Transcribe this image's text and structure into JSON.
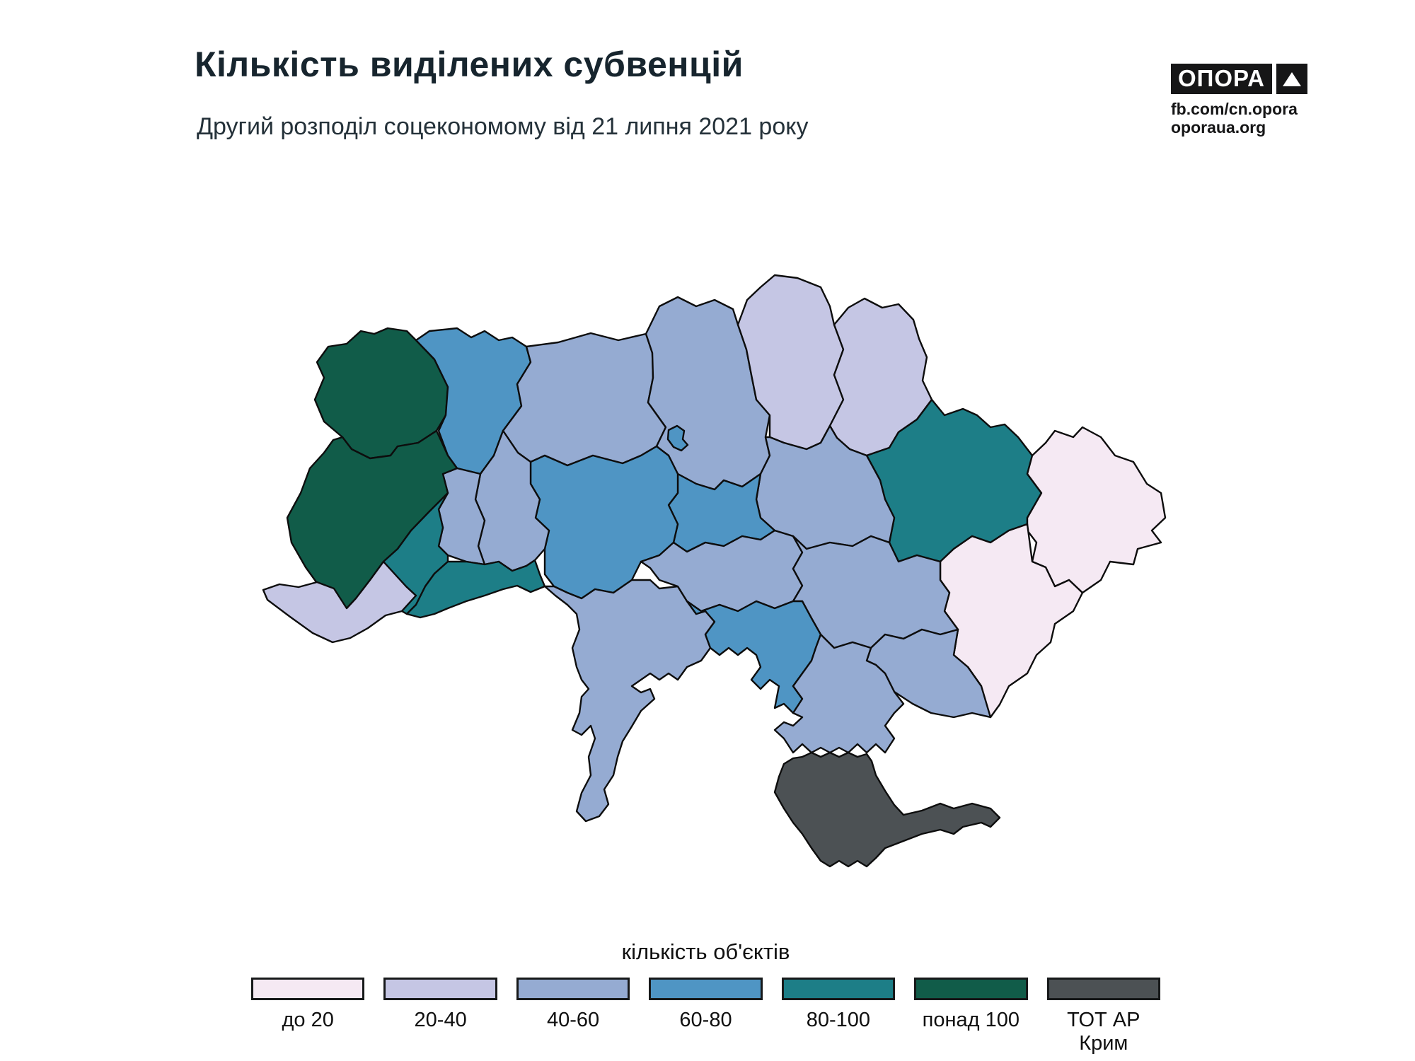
{
  "header": {
    "title": "Кількість виділених субвенцій",
    "subtitle": "Другий розподіл соцекономому від 21 липня 2021 року"
  },
  "logo": {
    "brand": "ОПОРА",
    "line1": "fb.com/cn.opora",
    "line2": "oporaua.org"
  },
  "legend": {
    "title": "кількість об'єктів",
    "items": [
      {
        "id": "under-20",
        "label": "до 20",
        "color": "#f5e9f3"
      },
      {
        "id": "20-40",
        "label": "20-40",
        "color": "#c5c6e4"
      },
      {
        "id": "40-60",
        "label": "40-60",
        "color": "#95abd2"
      },
      {
        "id": "60-80",
        "label": "60-80",
        "color": "#4f95c4"
      },
      {
        "id": "80-100",
        "label": "80-100",
        "color": "#1d7e87"
      },
      {
        "id": "over-100",
        "label": "понад 100",
        "color": "#115c49"
      },
      {
        "id": "tot-crimea",
        "label": "ТОТ АР Крим",
        "color": "#4c5154"
      }
    ]
  },
  "map": {
    "regions": [
      {
        "id": "volyn",
        "name": "Волинська",
        "category": "over-100"
      },
      {
        "id": "rivne",
        "name": "Рівненська",
        "category": "60-80"
      },
      {
        "id": "zhytomyr",
        "name": "Житомирська",
        "category": "40-60"
      },
      {
        "id": "kyiv-oblast",
        "name": "Київська",
        "category": "40-60"
      },
      {
        "id": "kyiv-city",
        "name": "м. Київ",
        "category": "60-80"
      },
      {
        "id": "chernihiv",
        "name": "Чернігівська",
        "category": "20-40"
      },
      {
        "id": "sumy",
        "name": "Сумська",
        "category": "20-40"
      },
      {
        "id": "kharkiv",
        "name": "Харківська",
        "category": "80-100"
      },
      {
        "id": "luhansk",
        "name": "Луганська",
        "category": "under-20"
      },
      {
        "id": "donetsk",
        "name": "Донецька",
        "category": "under-20"
      },
      {
        "id": "poltava",
        "name": "Полтавська",
        "category": "40-60"
      },
      {
        "id": "cherkasy",
        "name": "Черкаська",
        "category": "60-80"
      },
      {
        "id": "vinnytsia",
        "name": "Вінницька",
        "category": "60-80"
      },
      {
        "id": "khmelnytskyi",
        "name": "Хмельницька",
        "category": "40-60"
      },
      {
        "id": "ternopil",
        "name": "Тернопільська",
        "category": "40-60"
      },
      {
        "id": "lviv",
        "name": "Львівська",
        "category": "over-100"
      },
      {
        "id": "zakarpattia",
        "name": "Закарпатська",
        "category": "20-40"
      },
      {
        "id": "ivano-frankivsk",
        "name": "Івано-Франківська",
        "category": "80-100"
      },
      {
        "id": "chernivtsi",
        "name": "Чернівецька",
        "category": "80-100"
      },
      {
        "id": "odesa",
        "name": "Одеська",
        "category": "40-60"
      },
      {
        "id": "mykolaiv",
        "name": "Миколаївська",
        "category": "60-80"
      },
      {
        "id": "kherson",
        "name": "Херсонська",
        "category": "40-60"
      },
      {
        "id": "kirovohrad",
        "name": "Кіровоградська",
        "category": "40-60"
      },
      {
        "id": "dnipropetrovsk",
        "name": "Дніпропетровська",
        "category": "40-60"
      },
      {
        "id": "zaporizhzhia",
        "name": "Запорізька",
        "category": "40-60"
      },
      {
        "id": "crimea",
        "name": "АР Крим",
        "category": "tot-crimea"
      }
    ]
  },
  "chart_data": {
    "type": "choropleth",
    "title": "Кількість виділених субвенцій",
    "subtitle": "Другий розподіл соцекономому від 21 липня 2021 року",
    "legend_title": "кількість об'єктів",
    "categories": [
      "до 20",
      "20-40",
      "40-60",
      "60-80",
      "80-100",
      "понад 100",
      "ТОТ АР Крим"
    ],
    "category_colors": [
      "#f5e9f3",
      "#c5c6e4",
      "#95abd2",
      "#4f95c4",
      "#1d7e87",
      "#115c49",
      "#4c5154"
    ],
    "regions": [
      {
        "name": "Волинська",
        "value": "понад 100"
      },
      {
        "name": "Рівненська",
        "value": "60-80"
      },
      {
        "name": "Житомирська",
        "value": "40-60"
      },
      {
        "name": "Київська",
        "value": "40-60"
      },
      {
        "name": "м. Київ",
        "value": "60-80"
      },
      {
        "name": "Чернігівська",
        "value": "20-40"
      },
      {
        "name": "Сумська",
        "value": "20-40"
      },
      {
        "name": "Харківська",
        "value": "80-100"
      },
      {
        "name": "Луганська",
        "value": "до 20"
      },
      {
        "name": "Донецька",
        "value": "до 20"
      },
      {
        "name": "Полтавська",
        "value": "40-60"
      },
      {
        "name": "Черкаська",
        "value": "60-80"
      },
      {
        "name": "Вінницька",
        "value": "60-80"
      },
      {
        "name": "Хмельницька",
        "value": "40-60"
      },
      {
        "name": "Тернопільська",
        "value": "40-60"
      },
      {
        "name": "Львівська",
        "value": "понад 100"
      },
      {
        "name": "Закарпатська",
        "value": "20-40"
      },
      {
        "name": "Івано-Франківська",
        "value": "80-100"
      },
      {
        "name": "Чернівецька",
        "value": "80-100"
      },
      {
        "name": "Одеська",
        "value": "40-60"
      },
      {
        "name": "Миколаївська",
        "value": "60-80"
      },
      {
        "name": "Херсонська",
        "value": "40-60"
      },
      {
        "name": "Кіровоградська",
        "value": "40-60"
      },
      {
        "name": "Дніпропетровська",
        "value": "40-60"
      },
      {
        "name": "Запорізька",
        "value": "40-60"
      },
      {
        "name": "АР Крим",
        "value": "ТОТ АР Крим"
      }
    ]
  }
}
